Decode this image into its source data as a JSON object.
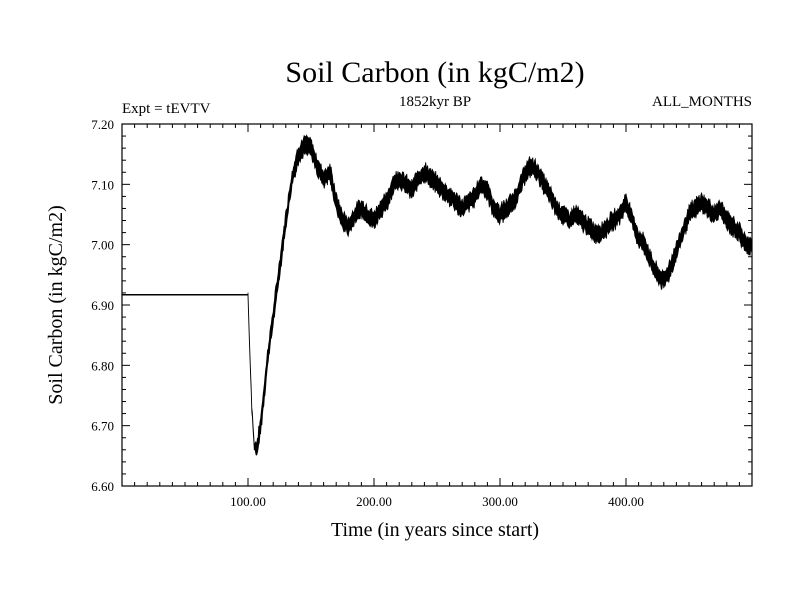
{
  "chart_data": {
    "type": "line",
    "title": "Soil Carbon (in kgC/m2)",
    "subtitle": "1852kyr BP",
    "annotation_left": "Expt = tEVTV",
    "annotation_right": "ALL_MONTHS",
    "xlabel": "Time (in years since start)",
    "ylabel": "Soil Carbon (in kgC/m2)",
    "xlim": [
      0,
      500
    ],
    "ylim": [
      6.6,
      7.2
    ],
    "x_ticks": [
      100,
      200,
      300,
      400
    ],
    "x_tick_labels": [
      "100.00",
      "200.00",
      "300.00",
      "400.00"
    ],
    "y_ticks": [
      6.6,
      6.7,
      6.8,
      6.9,
      7.0,
      7.1,
      7.2
    ],
    "y_tick_labels": [
      "6.60",
      "6.70",
      "6.80",
      "6.90",
      "7.00",
      "7.10",
      "7.20"
    ],
    "series": [
      {
        "name": "Soil Carbon",
        "x": [
          0,
          100,
          101,
          103,
          105,
          107,
          110,
          113,
          116,
          120,
          125,
          130,
          135,
          140,
          145,
          150,
          155,
          160,
          165,
          170,
          175,
          180,
          185,
          190,
          195,
          200,
          205,
          210,
          215,
          220,
          225,
          230,
          235,
          240,
          245,
          250,
          255,
          260,
          265,
          270,
          275,
          280,
          285,
          290,
          295,
          300,
          305,
          310,
          315,
          320,
          325,
          330,
          335,
          340,
          345,
          350,
          355,
          360,
          365,
          370,
          375,
          380,
          385,
          390,
          395,
          400,
          405,
          410,
          415,
          420,
          425,
          430,
          435,
          440,
          445,
          450,
          455,
          460,
          465,
          470,
          475,
          480,
          485,
          490,
          495,
          500
        ],
        "values": [
          6.917,
          6.917,
          6.85,
          6.73,
          6.665,
          6.66,
          6.7,
          6.76,
          6.82,
          6.88,
          6.96,
          7.04,
          7.11,
          7.15,
          7.165,
          7.16,
          7.13,
          7.11,
          7.12,
          7.07,
          7.04,
          7.03,
          7.05,
          7.06,
          7.05,
          7.04,
          7.06,
          7.07,
          7.1,
          7.11,
          7.1,
          7.09,
          7.11,
          7.12,
          7.11,
          7.1,
          7.09,
          7.08,
          7.07,
          7.06,
          7.07,
          7.08,
          7.1,
          7.09,
          7.06,
          7.05,
          7.06,
          7.07,
          7.09,
          7.12,
          7.13,
          7.12,
          7.1,
          7.08,
          7.06,
          7.05,
          7.04,
          7.05,
          7.04,
          7.03,
          7.02,
          7.02,
          7.03,
          7.04,
          7.05,
          7.07,
          7.04,
          7.01,
          7.0,
          6.97,
          6.95,
          6.94,
          6.96,
          6.99,
          7.02,
          7.05,
          7.06,
          7.07,
          7.06,
          7.05,
          7.06,
          7.04,
          7.03,
          7.02,
          7.0,
          7.0
        ],
        "noise_amplitude": 0.012,
        "noise_start_x": 100
      }
    ]
  }
}
